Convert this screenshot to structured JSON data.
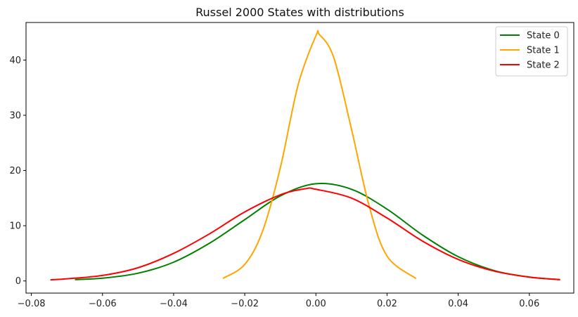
{
  "chart_data": {
    "type": "line",
    "title": "Russel 2000 States with distributions",
    "xlabel": "",
    "ylabel": "",
    "xlim": [
      -0.0815,
      0.0725
    ],
    "ylim": [
      -2.2,
      46.8
    ],
    "x_ticks": [
      -0.08,
      -0.06,
      -0.04,
      -0.02,
      0.0,
      0.02,
      0.04,
      0.06
    ],
    "x_tick_labels": [
      "−0.08",
      "−0.06",
      "−0.04",
      "−0.02",
      "0.00",
      "0.02",
      "0.04",
      "0.06"
    ],
    "y_ticks": [
      0,
      10,
      20,
      30,
      40
    ],
    "y_tick_labels": [
      "0",
      "10",
      "20",
      "30",
      "40"
    ],
    "grid": false,
    "legend_position": "top-right",
    "series": [
      {
        "name": "State 0",
        "color": "#008000",
        "x": [
          -0.0676,
          -0.06,
          -0.05,
          -0.04,
          -0.03,
          -0.02,
          -0.01,
          0.0,
          0.01,
          0.02,
          0.03,
          0.04,
          0.05,
          0.06,
          0.0685
        ],
        "y": [
          0.25,
          0.5,
          1.4,
          3.4,
          6.8,
          11.1,
          15.4,
          17.6,
          16.6,
          13.0,
          8.3,
          4.4,
          1.9,
          0.7,
          0.25
        ]
      },
      {
        "name": "State 1",
        "color": "#FFA500",
        "x": [
          -0.026,
          -0.02,
          -0.015,
          -0.01,
          -0.005,
          0.0,
          0.001,
          0.005,
          0.01,
          0.015,
          0.02,
          0.028
        ],
        "y": [
          0.5,
          3.0,
          9.0,
          20.5,
          35.5,
          44.4,
          44.6,
          40.5,
          27.5,
          13.5,
          4.5,
          0.5
        ]
      },
      {
        "name": "State 2",
        "color": "#FF0000",
        "x": [
          -0.0745,
          -0.07,
          -0.06,
          -0.05,
          -0.04,
          -0.03,
          -0.02,
          -0.01,
          -0.003,
          0.0,
          0.01,
          0.02,
          0.03,
          0.04,
          0.05,
          0.06,
          0.0685
        ],
        "y": [
          0.2,
          0.4,
          1.0,
          2.4,
          5.0,
          8.5,
          12.5,
          15.6,
          16.7,
          16.6,
          15.0,
          11.4,
          7.2,
          3.9,
          1.8,
          0.7,
          0.25
        ]
      }
    ]
  }
}
